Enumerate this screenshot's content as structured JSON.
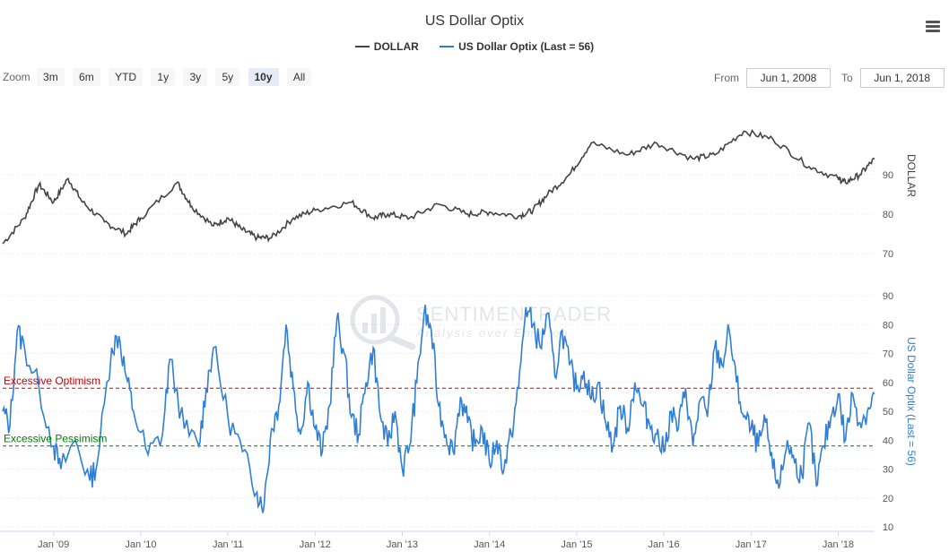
{
  "header": {
    "title": "US Dollar Optix"
  },
  "legend": [
    {
      "name": "DOLLAR",
      "color": "#434348"
    },
    {
      "name": "US Dollar Optix (Last = 56)",
      "color": "#2f7ed8"
    }
  ],
  "zoom": {
    "label": "Zoom",
    "buttons": [
      "3m",
      "6m",
      "YTD",
      "1y",
      "3y",
      "5y",
      "10y",
      "All"
    ],
    "active": "10y"
  },
  "range": {
    "from_label": "From",
    "from_value": "Jun 1, 2008",
    "to_label": "To",
    "to_value": "Jun 1, 2018"
  },
  "watermark": {
    "brand": "SENTIMENTRADER",
    "tagline": "Analysis over Emotion"
  },
  "annotations": {
    "optimism": "Excessive Optimism",
    "pessimism": "Excessive Pessimism"
  },
  "colors": {
    "dollar": "#434348",
    "optix": "#2f7ed8",
    "optimism": "#cc0000",
    "pessimism": "#008000"
  },
  "chart_data": [
    {
      "type": "line",
      "title": "US Dollar Optix",
      "ylabel": "DOLLAR",
      "ylim": [
        65,
        107
      ],
      "yticks": [
        70,
        80,
        90
      ],
      "x_ticks": [
        "Jan '09",
        "Jan '10",
        "Jan '11",
        "Jan '12",
        "Jan '13",
        "Jan '14",
        "Jan '15",
        "Jan '16",
        "Jan '17",
        "Jan '18"
      ],
      "series": [
        {
          "name": "DOLLAR",
          "x": [
            "Jun 2008",
            "Sep 2008",
            "Nov 2008",
            "Jan 2009",
            "Mar 2009",
            "May 2009",
            "Aug 2009",
            "Nov 2009",
            "Jan 2010",
            "Jun 2010",
            "Aug 2010",
            "Nov 2010",
            "Jan 2011",
            "Mar 2011",
            "May 2011",
            "Jul 2011",
            "Oct 2011",
            "Jan 2012",
            "Jun 2012",
            "Sep 2012",
            "Nov 2012",
            "Feb 2013",
            "Jun 2013",
            "Oct 2013",
            "Jan 2014",
            "May 2014",
            "Jul 2014",
            "Sep 2014",
            "Dec 2014",
            "Mar 2015",
            "Aug 2015",
            "Dec 2015",
            "May 2016",
            "Aug 2016",
            "Dec 2016",
            "Apr 2017",
            "Sep 2017",
            "Jan 2018",
            "Feb 2018",
            "Apr 2018",
            "Jun 2018"
          ],
          "values": [
            72.5,
            79,
            87.5,
            83,
            89,
            83,
            78,
            75,
            79,
            88,
            82,
            77,
            79,
            76,
            74,
            74,
            79,
            81,
            83,
            79,
            80,
            79,
            82.5,
            80,
            80.5,
            79.5,
            81,
            85,
            90,
            98,
            95,
            98,
            94,
            95,
            101,
            99,
            92,
            89,
            88,
            90,
            94
          ]
        }
      ]
    },
    {
      "type": "line",
      "ylabel": "US Dollar Optix (Last = 56)",
      "ylim": [
        10,
        90
      ],
      "yticks": [
        10,
        20,
        30,
        40,
        50,
        60,
        70,
        80,
        90
      ],
      "x_ticks": [
        "Jan '09",
        "Jan '10",
        "Jan '11",
        "Jan '12",
        "Jan '13",
        "Jan '14",
        "Jan '15",
        "Jan '16",
        "Jan '17",
        "Jan '18"
      ],
      "reference_lines": [
        {
          "label": "Excessive Optimism",
          "value": 58
        },
        {
          "label": "Excessive Pessimism",
          "value": 38
        }
      ],
      "series": [
        {
          "name": "US Dollar Optix (Last = 56)",
          "x": [
            "Jun 2008",
            "Jul 2008",
            "Aug 2008",
            "Sep 2008",
            "Nov 2008",
            "Jan 2009",
            "Feb 2009",
            "Apr 2009",
            "Jun 2009",
            "Jul 2009",
            "Sep 2009",
            "Oct 2009",
            "Nov 2009",
            "Dec 2009",
            "Feb 2010",
            "Apr 2010",
            "May 2010",
            "Jul 2010",
            "Sep 2010",
            "Oct 2010",
            "Nov 2010",
            "Jan 2011",
            "Mar 2011",
            "May 2011",
            "Jun 2011",
            "Jul 2011",
            "Aug 2011",
            "Sep 2011",
            "Oct 2011",
            "Nov 2011",
            "Dec 2011",
            "Jan 2012",
            "Feb 2012",
            "Mar 2012",
            "Apr 2012",
            "May 2012",
            "Jun 2012",
            "Jul 2012",
            "Aug 2012",
            "Sep 2012",
            "Oct 2012",
            "Nov 2012",
            "Dec 2012",
            "Jan 2013",
            "Feb 2013",
            "Mar 2013",
            "Apr 2013",
            "May 2013",
            "Jun 2013",
            "Jul 2013",
            "Aug 2013",
            "Sep 2013",
            "Oct 2013",
            "Nov 2013",
            "Dec 2013",
            "Jan 2014",
            "Feb 2014",
            "Mar 2014",
            "Apr 2014",
            "May 2014",
            "Jun 2014",
            "Jul 2014",
            "Aug 2014",
            "Sep 2014",
            "Oct 2014",
            "Nov 2014",
            "Dec 2014",
            "Jan 2015",
            "Feb 2015",
            "Mar 2015",
            "Apr 2015",
            "May 2015",
            "Jun 2015",
            "Jul 2015",
            "Aug 2015",
            "Sep 2015",
            "Oct 2015",
            "Nov 2015",
            "Dec 2015",
            "Jan 2016",
            "Feb 2016",
            "Mar 2016",
            "Apr 2016",
            "May 2016",
            "Jun 2016",
            "Jul 2016",
            "Aug 2016",
            "Sep 2016",
            "Oct 2016",
            "Nov 2016",
            "Dec 2016",
            "Jan 2017",
            "Feb 2017",
            "Mar 2017",
            "Apr 2017",
            "May 2017",
            "Jun 2017",
            "Jul 2017",
            "Aug 2017",
            "Sep 2017",
            "Oct 2017",
            "Nov 2017",
            "Dec 2017",
            "Jan 2018",
            "Feb 2018",
            "Mar 2018",
            "Apr 2018",
            "May 2018",
            "Jun 2018"
          ],
          "values": [
            50,
            45,
            78,
            72,
            58,
            38,
            30,
            40,
            26,
            32,
            72,
            76,
            62,
            50,
            35,
            42,
            68,
            44,
            38,
            58,
            72,
            48,
            36,
            22,
            18,
            44,
            52,
            80,
            58,
            42,
            60,
            44,
            36,
            52,
            82,
            70,
            48,
            42,
            60,
            72,
            48,
            38,
            50,
            30,
            38,
            60,
            84,
            78,
            52,
            42,
            36,
            55,
            46,
            38,
            44,
            32,
            40,
            30,
            42,
            58,
            86,
            80,
            72,
            84,
            62,
            78,
            66,
            58,
            64,
            54,
            60,
            46,
            38,
            52,
            44,
            60,
            52,
            46,
            42,
            36,
            50,
            44,
            58,
            38,
            54,
            48,
            72,
            66,
            78,
            60,
            48,
            44,
            38,
            46,
            30,
            25,
            40,
            32,
            28,
            46,
            24,
            38,
            48,
            56,
            40,
            56,
            46,
            50,
            56
          ]
        }
      ]
    }
  ]
}
